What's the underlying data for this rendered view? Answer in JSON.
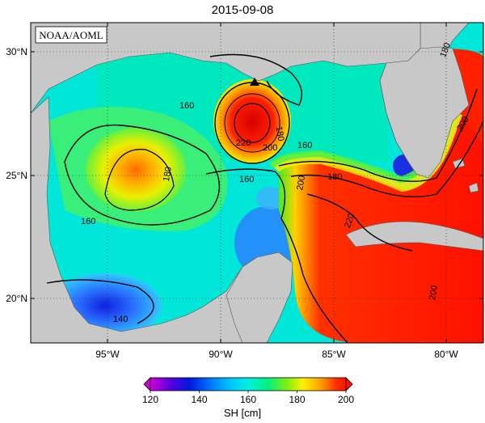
{
  "title": "2015-09-08",
  "credit": "NOAA/AOML",
  "lat_labels": [
    "30°N",
    "25°N",
    "20°N"
  ],
  "lon_labels": [
    "95°W",
    "90°W",
    "85°W",
    "80°W"
  ],
  "contour_labels": [
    "160",
    "160",
    "160",
    "160",
    "180",
    "180",
    "180",
    "180",
    "200",
    "200",
    "200",
    "200",
    "220",
    "220",
    "140"
  ],
  "colorbar": {
    "label": "SH [cm]",
    "ticks": [
      "120",
      "140",
      "160",
      "180",
      "200"
    ],
    "colors": [
      "#d000d8",
      "#5a00e0",
      "#0018e0",
      "#0070ff",
      "#00c0ff",
      "#00f0e0",
      "#00f080",
      "#40f020",
      "#c8f000",
      "#fff000",
      "#ffb000",
      "#ff6000",
      "#ff1000"
    ]
  },
  "colors": {
    "land": "#c8c8c8",
    "warm": "#ff1a00",
    "cool": "#1a3cff",
    "mid": "#00e8e0"
  }
}
